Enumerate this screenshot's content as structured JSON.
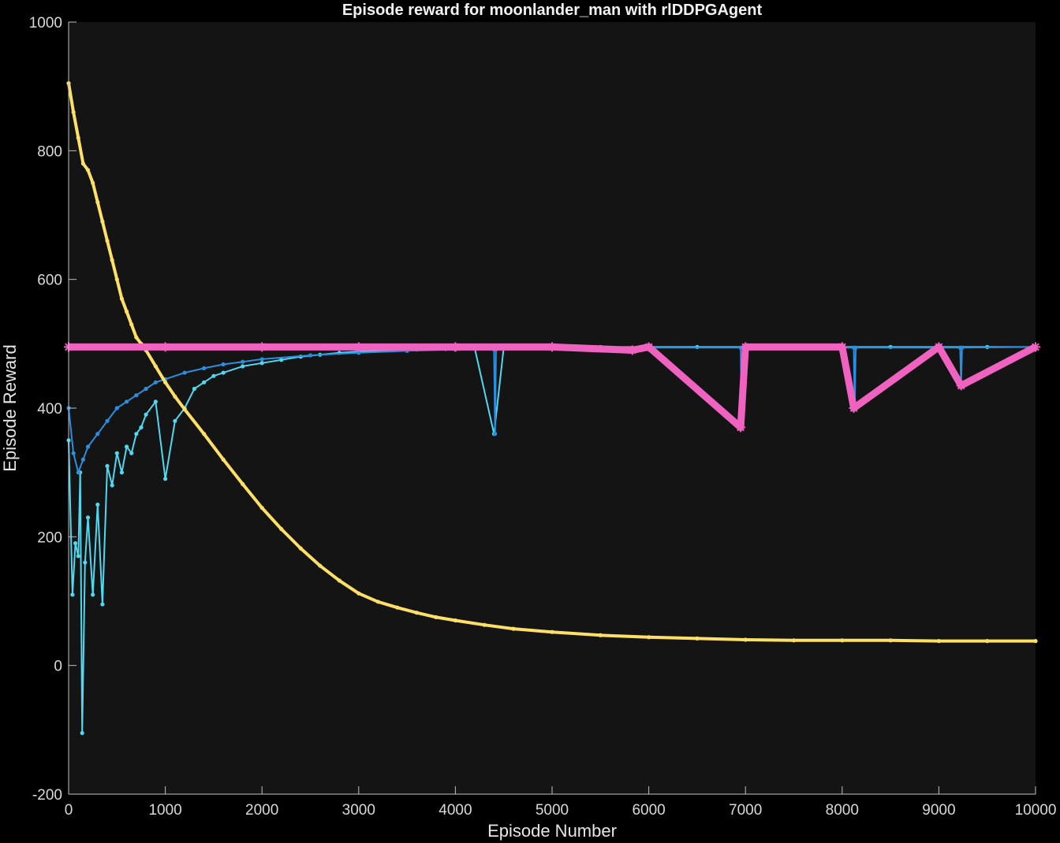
{
  "chart_data": {
    "type": "line",
    "title": "Episode reward for moonlander_man with rlDDPGAgent",
    "xlabel": "Episode Number",
    "ylabel": "Episode Reward",
    "xlim": [
      0,
      10000
    ],
    "ylim": [
      -200,
      1000
    ],
    "xticks": [
      "0",
      "1000",
      "2000",
      "3000",
      "4000",
      "5000",
      "6000",
      "7000",
      "8000",
      "9000",
      "10000"
    ],
    "yticks": [
      "-200",
      "0",
      "200",
      "400",
      "600",
      "800",
      "1000"
    ],
    "grid": false,
    "colors": {
      "background": "#141414",
      "figure": "#000000",
      "episode_reward": "#4fd8f0",
      "average_reward": "#2a8fe0",
      "episode_q0": "#ffe066",
      "target": "#f062c0"
    },
    "series": [
      {
        "key": "episode_reward",
        "marker": "dot",
        "x": [
          0,
          40,
          70,
          100,
          120,
          140,
          170,
          200,
          250,
          300,
          350,
          400,
          450,
          500,
          550,
          600,
          650,
          700,
          750,
          800,
          900,
          1000,
          1100,
          1200,
          1300,
          1400,
          1500,
          1600,
          1800,
          2000,
          2200,
          2400,
          2600,
          2800,
          3000,
          3300,
          3600,
          3900,
          4200,
          4400,
          4500,
          5000,
          5500,
          6000,
          6500,
          7000,
          7500,
          8000,
          8500,
          9000,
          9500,
          10000
        ],
        "values": [
          350,
          110,
          190,
          170,
          300,
          -105,
          160,
          230,
          110,
          250,
          95,
          310,
          280,
          330,
          300,
          340,
          330,
          360,
          370,
          390,
          410,
          290,
          380,
          400,
          430,
          440,
          450,
          455,
          465,
          470,
          475,
          480,
          483,
          486,
          488,
          490,
          491,
          492,
          493,
          360,
          494,
          495,
          495,
          495,
          495,
          495,
          495,
          495,
          495,
          495,
          495,
          495
        ]
      },
      {
        "key": "average_reward",
        "marker": "dot",
        "x": [
          0,
          50,
          100,
          150,
          200,
          300,
          400,
          500,
          600,
          700,
          800,
          900,
          1000,
          1200,
          1400,
          1600,
          1800,
          2000,
          2500,
          3000,
          3500,
          4000,
          4400,
          4410,
          4420,
          5000,
          6000,
          6950,
          6960,
          6970,
          8120,
          8130,
          8140,
          9220,
          9230,
          9240,
          10000
        ],
        "values": [
          400,
          330,
          300,
          320,
          340,
          360,
          380,
          400,
          410,
          420,
          430,
          440,
          445,
          455,
          462,
          468,
          472,
          476,
          482,
          486,
          489,
          491,
          491,
          360,
          491,
          493,
          494,
          494,
          370,
          494,
          494,
          400,
          494,
          494,
          435,
          494,
          495
        ]
      },
      {
        "key": "episode_q0",
        "marker": "dot",
        "x": [
          0,
          50,
          100,
          150,
          200,
          250,
          300,
          350,
          400,
          450,
          500,
          550,
          600,
          650,
          700,
          750,
          800,
          900,
          1000,
          1100,
          1200,
          1400,
          1600,
          1800,
          2000,
          2200,
          2400,
          2600,
          2800,
          3000,
          3200,
          3400,
          3600,
          3800,
          4000,
          4300,
          4600,
          5000,
          5500,
          6000,
          6500,
          7000,
          7500,
          8000,
          8500,
          9000,
          9500,
          10000
        ],
        "values": [
          905,
          860,
          820,
          780,
          770,
          750,
          720,
          690,
          660,
          630,
          600,
          570,
          550,
          530,
          510,
          500,
          490,
          465,
          440,
          418,
          398,
          360,
          320,
          282,
          245,
          212,
          182,
          155,
          132,
          112,
          99,
          90,
          82,
          75,
          70,
          63,
          57,
          52,
          47,
          44,
          42,
          40,
          39,
          39,
          39,
          38,
          38,
          38
        ]
      },
      {
        "key": "target",
        "marker": "asterisk",
        "x": [
          0,
          1000,
          2000,
          3000,
          4000,
          5000,
          5830,
          6000,
          6950,
          7000,
          8000,
          8120,
          9000,
          9230,
          10000
        ],
        "values": [
          495,
          495,
          495,
          495,
          495,
          495,
          490,
          495,
          370,
          495,
          495,
          400,
          495,
          435,
          495
        ]
      }
    ]
  }
}
